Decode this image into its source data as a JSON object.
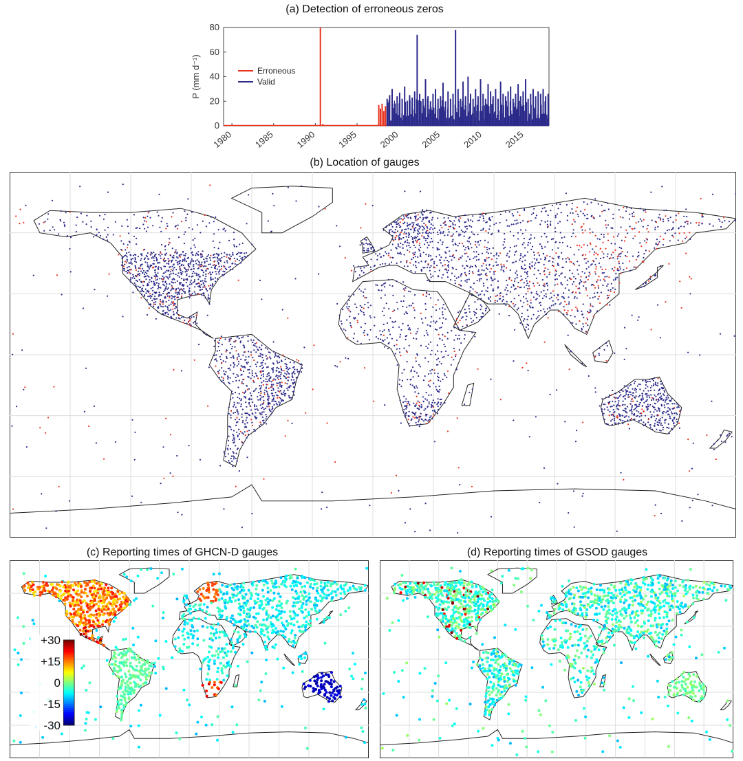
{
  "colors": {
    "valid": "#2b2a8a",
    "erroneous": "#e8321e",
    "land_outline": "#222222",
    "grid": "#dddddd"
  },
  "chart_data": [
    {
      "panel": "a",
      "type": "line",
      "title": "(a) Detection of erroneous zeros",
      "ylabel": "P (mm d⁻¹)",
      "xlabel": "",
      "xlim": [
        1979,
        2018
      ],
      "ylim": [
        0,
        80
      ],
      "yticks": [
        0,
        20,
        40,
        60,
        80
      ],
      "xticks": [
        1980,
        1985,
        1990,
        1995,
        2000,
        2005,
        2010,
        2015
      ],
      "legend": {
        "placement": "center-left",
        "entries": [
          "Erroneous",
          "Valid"
        ]
      },
      "series": [
        {
          "name": "Erroneous",
          "x": [
            1979.5,
            1980.2,
            1981.0,
            1983.5,
            1986.0,
            1988.0,
            1990.3,
            1990.6,
            1990.9,
            1992.0,
            1994.0,
            1996.0,
            1997.6,
            1997.8,
            1998.0,
            1998.2,
            1998.4
          ],
          "y": [
            0.4,
            0.3,
            0.5,
            0.4,
            0.5,
            0.3,
            0.6,
            80,
            1.5,
            0.4,
            0.3,
            0.5,
            17,
            14,
            18,
            12,
            16
          ]
        },
        {
          "name": "Valid",
          "x": [
            1998.6,
            1998.9,
            1999.2,
            1999.5,
            1999.8,
            2000.1,
            2000.4,
            2000.7,
            2001.0,
            2001.3,
            2001.6,
            2001.9,
            2002.2,
            2002.5,
            2002.9,
            2003.2,
            2003.5,
            2003.8,
            2004.1,
            2004.4,
            2004.7,
            2005.0,
            2005.3,
            2005.6,
            2005.9,
            2006.2,
            2006.5,
            2006.8,
            2007.1,
            2007.4,
            2007.7,
            2008.0,
            2008.3,
            2008.6,
            2008.9,
            2009.2,
            2009.5,
            2009.8,
            2010.1,
            2010.4,
            2010.7,
            2011.0,
            2011.3,
            2011.6,
            2011.9,
            2012.2,
            2012.5,
            2012.8,
            2013.1,
            2013.4,
            2013.7,
            2014.0,
            2014.3,
            2014.6,
            2014.9,
            2015.2,
            2015.5,
            2015.8,
            2016.1,
            2016.4,
            2016.7,
            2017.0,
            2017.3,
            2017.6,
            2017.9
          ],
          "y": [
            22,
            25,
            30,
            18,
            24,
            27,
            22,
            32,
            20,
            25,
            23,
            28,
            74,
            26,
            22,
            38,
            24,
            20,
            26,
            30,
            22,
            24,
            35,
            20,
            28,
            22,
            26,
            78,
            30,
            22,
            36,
            24,
            40,
            26,
            22,
            30,
            24,
            38,
            26,
            22,
            34,
            28,
            24,
            30,
            22,
            36,
            26,
            24,
            28,
            32,
            22,
            26,
            34,
            24,
            28,
            38,
            22,
            26,
            30,
            24,
            28,
            26,
            30,
            24,
            26
          ]
        }
      ]
    },
    {
      "panel": "b",
      "type": "scatter",
      "title": "(b) Location of gauges",
      "series": [
        {
          "name": "Valid"
        },
        {
          "name": "Erroneous"
        }
      ]
    },
    {
      "panel": "c",
      "type": "scatter",
      "title": "(c) Reporting times of GHCN-D gauges",
      "colorbar": {
        "ticks": [
          "+30",
          "+15",
          "0",
          "-15",
          "-30"
        ],
        "range": [
          -30,
          30
        ]
      }
    },
    {
      "panel": "d",
      "type": "scatter",
      "title": "(d) Reporting times of GSOD gauges"
    }
  ]
}
